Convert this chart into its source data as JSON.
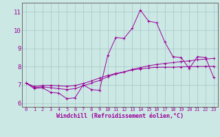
{
  "xlabel": "Windchill (Refroidissement éolien,°C)",
  "background_color": "#cce8e4",
  "grid_color": "#aaccca",
  "line_color": "#990099",
  "x_hours": [
    0,
    1,
    2,
    3,
    4,
    5,
    6,
    7,
    8,
    9,
    10,
    11,
    12,
    13,
    14,
    15,
    16,
    17,
    18,
    19,
    20,
    21,
    22,
    23
  ],
  "y_windchill": [
    7.1,
    6.8,
    6.85,
    6.6,
    6.55,
    6.25,
    6.3,
    7.0,
    6.75,
    6.7,
    8.6,
    9.6,
    9.55,
    10.1,
    11.1,
    10.5,
    10.4,
    9.35,
    8.55,
    8.5,
    7.9,
    8.55,
    8.5,
    7.4
  ],
  "y_line2": [
    7.1,
    6.85,
    6.9,
    6.85,
    6.8,
    6.75,
    6.8,
    6.95,
    7.1,
    7.25,
    7.45,
    7.6,
    7.7,
    7.85,
    7.95,
    8.05,
    8.12,
    8.18,
    8.22,
    8.28,
    8.32,
    8.38,
    8.42,
    8.45
  ],
  "y_line3": [
    7.1,
    6.92,
    6.97,
    6.98,
    6.95,
    6.93,
    6.97,
    7.08,
    7.22,
    7.38,
    7.52,
    7.63,
    7.72,
    7.82,
    7.88,
    7.93,
    7.97,
    7.97,
    7.97,
    7.99,
    8.0,
    8.01,
    8.02,
    8.02
  ],
  "ylim": [
    5.8,
    11.5
  ],
  "yticks": [
    6,
    7,
    8,
    9,
    10,
    11
  ],
  "xticks": [
    0,
    1,
    2,
    3,
    4,
    5,
    6,
    7,
    8,
    9,
    10,
    11,
    12,
    13,
    14,
    15,
    16,
    17,
    18,
    19,
    20,
    21,
    22,
    23
  ],
  "spine_color": "#666666"
}
